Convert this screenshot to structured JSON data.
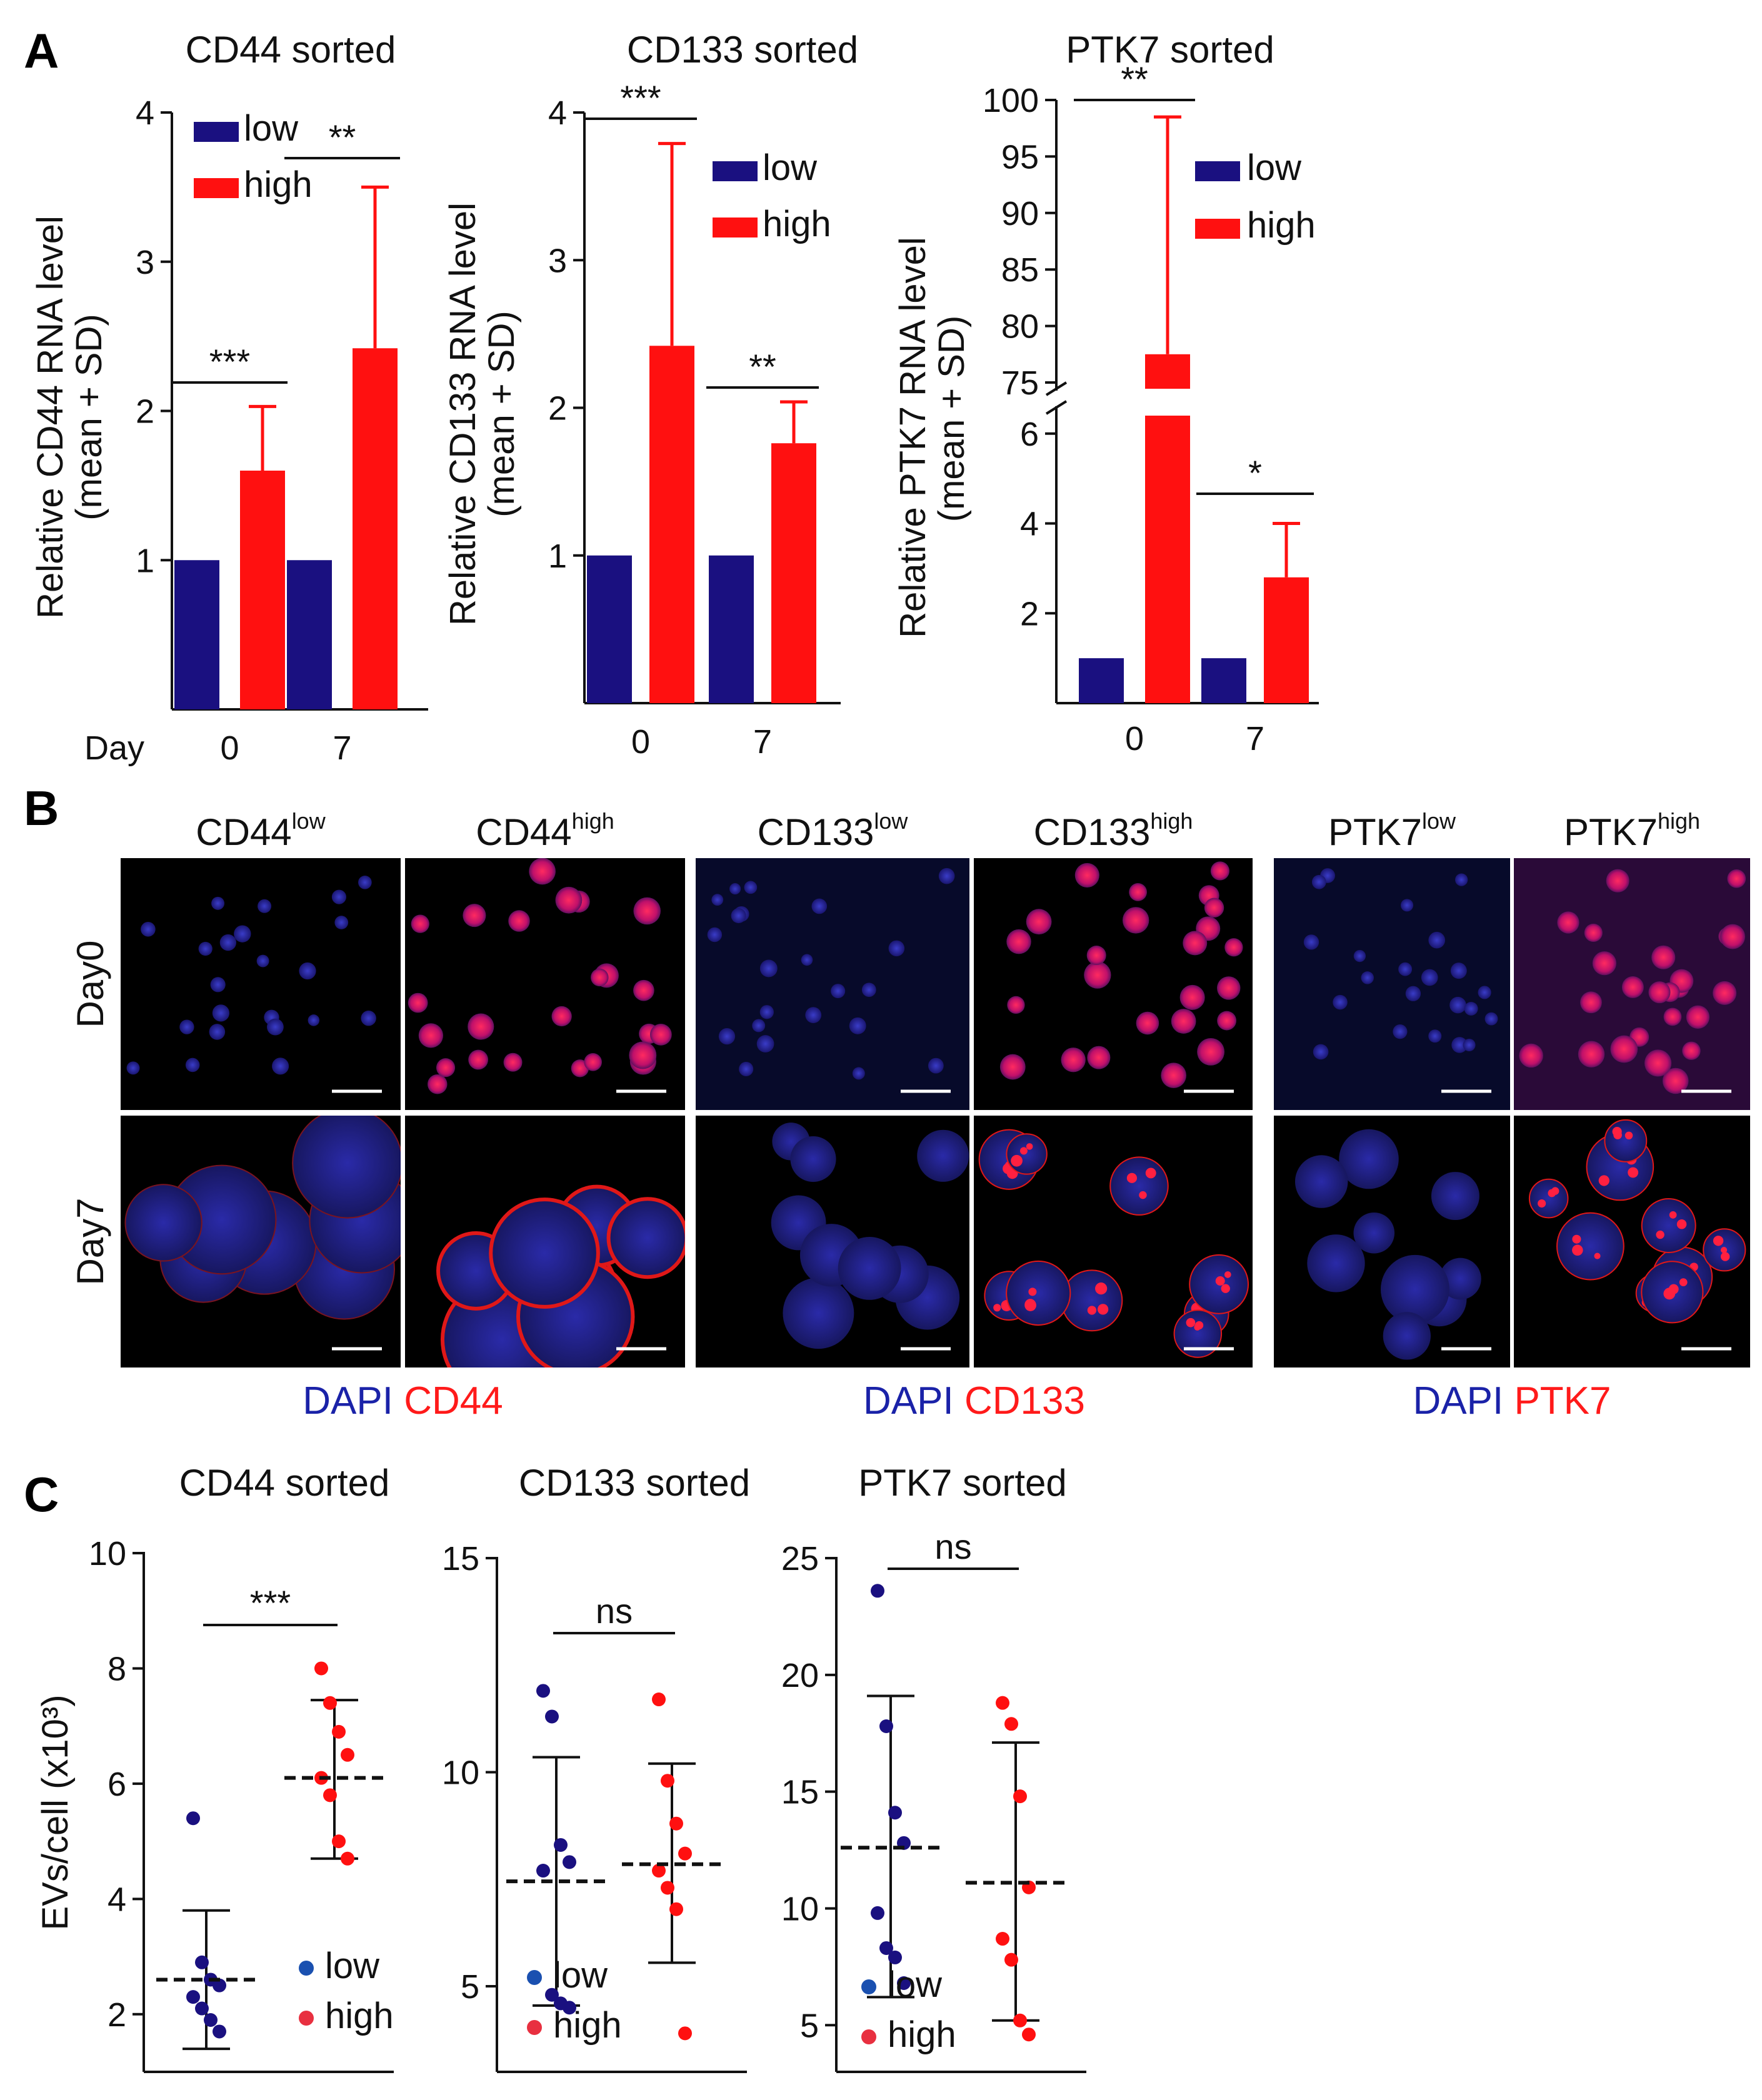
{
  "panels": {
    "A": "A",
    "B": "B",
    "C": "C"
  },
  "colors": {
    "low": "#1a1080",
    "high": "#ff1010",
    "blue_label": "#1a22a8",
    "red_label": "#ff1a1a"
  },
  "chart_data": [
    {
      "id": "A1",
      "type": "bar",
      "title": "CD44 sorted",
      "ylabel": [
        "Relative CD44 RNA level",
        "(mean + SD)"
      ],
      "xlabel": "Day",
      "categories": [
        "0",
        "7"
      ],
      "ylim": [
        0,
        4
      ],
      "yticks": [
        "1",
        "2",
        "3",
        "4"
      ],
      "legend": [
        "low",
        "high"
      ],
      "series": [
        {
          "name": "low",
          "values": [
            1,
            1
          ],
          "sd": [
            0,
            0
          ]
        },
        {
          "name": "high",
          "values": [
            1.6,
            2.42
          ],
          "sd": [
            0.43,
            1.08
          ]
        }
      ],
      "significance": [
        "***",
        "**"
      ]
    },
    {
      "id": "A2",
      "type": "bar",
      "title": "CD133 sorted",
      "ylabel": [
        "Relative CD133 RNA level",
        "(mean + SD)"
      ],
      "categories": [
        "0",
        "7"
      ],
      "ylim": [
        0,
        4
      ],
      "yticks": [
        "1",
        "2",
        "3",
        "4"
      ],
      "legend": [
        "low",
        "high"
      ],
      "series": [
        {
          "name": "low",
          "values": [
            1,
            1
          ],
          "sd": [
            0,
            0
          ]
        },
        {
          "name": "high",
          "values": [
            2.42,
            1.76
          ],
          "sd": [
            1.37,
            0.28
          ]
        }
      ],
      "significance": [
        "***",
        "**"
      ]
    },
    {
      "id": "A3",
      "type": "bar",
      "title": "PTK7 sorted",
      "ylabel": [
        "Relative PTK7 RNA level",
        "(mean + SD)"
      ],
      "categories": [
        "0",
        "7"
      ],
      "broken_axis": true,
      "yticks_lower": [
        "2",
        "4",
        "6"
      ],
      "yticks_upper": [
        "75",
        "80",
        "85",
        "90",
        "95",
        "100"
      ],
      "legend": [
        "low",
        "high"
      ],
      "series": [
        {
          "name": "low",
          "values": [
            1,
            1
          ],
          "sd": [
            0,
            0
          ]
        },
        {
          "name": "high",
          "values": [
            77.5,
            2.8
          ],
          "sd": [
            21,
            1.2
          ]
        }
      ],
      "significance": [
        "**",
        "*"
      ]
    },
    {
      "id": "C1",
      "type": "scatter",
      "title": "CD44 sorted",
      "ylabel": "EVs/cell (x10³)",
      "ylim": [
        1,
        10
      ],
      "yticks": [
        "2",
        "4",
        "6",
        "8",
        "10"
      ],
      "legend": [
        "low",
        "high"
      ],
      "groups": [
        {
          "name": "low",
          "points": [
            5.4,
            2.9,
            2.6,
            2.5,
            2.3,
            2.1,
            1.9,
            1.7
          ],
          "mean": 2.6,
          "sd_low": 1.4,
          "sd_high": 3.8
        },
        {
          "name": "high",
          "points": [
            8.0,
            7.4,
            6.9,
            6.5,
            6.1,
            5.8,
            5.0,
            4.7
          ],
          "mean": 6.1,
          "sd_low": 4.7,
          "sd_high": 7.45
        }
      ],
      "significance": "***"
    },
    {
      "id": "C2",
      "type": "scatter",
      "title": "CD133 sorted",
      "ylabel": "",
      "ylim": [
        3,
        15
      ],
      "yticks": [
        "5",
        "10",
        "15"
      ],
      "legend": [
        "low",
        "high"
      ],
      "groups": [
        {
          "name": "low",
          "points": [
            11.9,
            11.3,
            8.3,
            7.9,
            7.7,
            4.8,
            4.6,
            4.5
          ],
          "mean": 7.45,
          "sd_low": 4.55,
          "sd_high": 10.35
        },
        {
          "name": "high",
          "points": [
            11.7,
            9.8,
            8.8,
            8.1,
            7.7,
            7.3,
            6.8,
            3.9
          ],
          "mean": 7.85,
          "sd_low": 5.55,
          "sd_high": 10.2
        }
      ],
      "significance": "ns"
    },
    {
      "id": "C3",
      "type": "scatter",
      "title": "PTK7 sorted",
      "ylabel": "",
      "ylim": [
        3,
        25
      ],
      "yticks": [
        "5",
        "10",
        "15",
        "20",
        "25"
      ],
      "legend": [
        "low",
        "high"
      ],
      "groups": [
        {
          "name": "low",
          "points": [
            23.6,
            17.8,
            14.1,
            12.8,
            9.8,
            8.3,
            7.9,
            6.8
          ],
          "mean": 12.6,
          "sd_low": 6.2,
          "sd_high": 19.1
        },
        {
          "name": "high",
          "points": [
            18.8,
            17.9,
            14.8,
            10.9,
            8.7,
            7.8,
            5.2,
            4.6
          ],
          "mean": 11.1,
          "sd_low": 5.2,
          "sd_high": 17.1
        }
      ],
      "significance": "ns"
    }
  ],
  "microscopy": {
    "groups": [
      {
        "marker": "CD44",
        "low_title": "CD44",
        "low_sup": "low",
        "high_title": "CD44",
        "high_sup": "high",
        "stain_dapi": "DAPI",
        "stain_marker": "CD44"
      },
      {
        "marker": "CD133",
        "low_title": "CD133",
        "low_sup": "low",
        "high_title": "CD133",
        "high_sup": "high",
        "stain_dapi": "DAPI",
        "stain_marker": "CD133"
      },
      {
        "marker": "PTK7",
        "low_title": "PTK7",
        "low_sup": "low",
        "high_title": "PTK7",
        "high_sup": "high",
        "stain_dapi": "DAPI",
        "stain_marker": "PTK7"
      }
    ],
    "row_labels": [
      "Day0",
      "Day7"
    ]
  }
}
